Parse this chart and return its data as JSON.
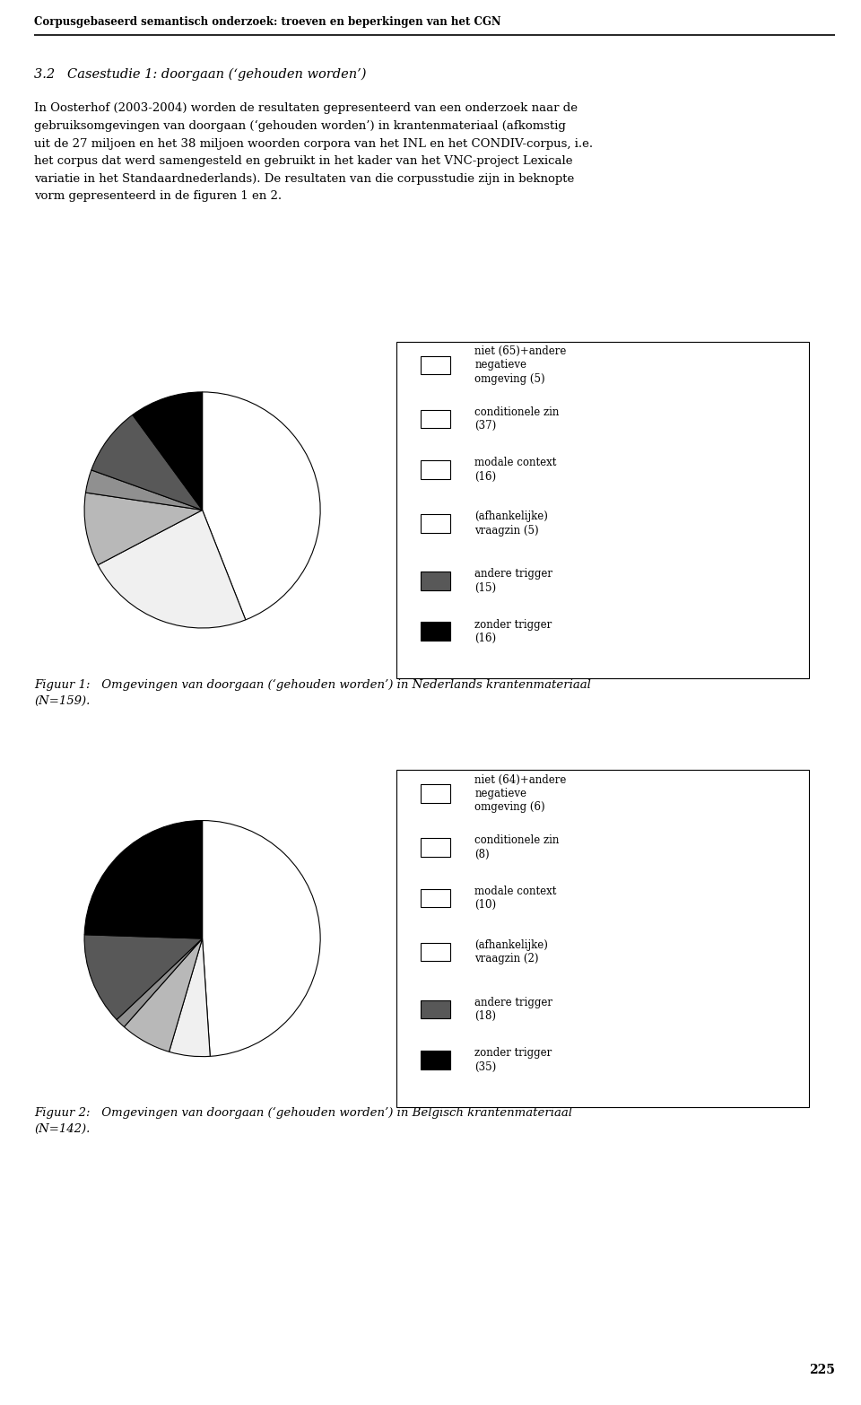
{
  "header": "Corpusgebaseerd semantisch onderzoek: troeven en beperkingen van het CGN",
  "section_title": "3.2   Casestudie 1: doorgaan (‘gehouden worden’)",
  "fig1_caption_line1": "Figuur 1:   Omgevingen van doorgaan (‘gehouden worden’) in Nederlands krantenmateriaal",
  "fig1_caption_line2": "(N=159).",
  "fig2_caption_line1": "Figuur 2:   Omgevingen van doorgaan (‘gehouden worden’) in Belgisch krantenmateriaal",
  "fig2_caption_line2": "(N=142).",
  "page_number": "225",
  "chart1": {
    "values": [
      70,
      37,
      16,
      5,
      15,
      16
    ],
    "colors": [
      "#ffffff",
      "#f0f0f0",
      "#b8b8b8",
      "#909090",
      "#585858",
      "#000000"
    ],
    "labels": [
      "niet (65)+andere\nnegatieve\nomgeving (5)",
      "conditionele zin\n(37)",
      "modale context\n(16)",
      "(afhankelijke)\nvraagzin (5)",
      "andere trigger\n(15)",
      "zonder trigger\n(16)"
    ],
    "marker_filled": [
      false,
      false,
      false,
      false,
      true,
      true
    ]
  },
  "chart2": {
    "values": [
      70,
      8,
      10,
      2,
      18,
      35
    ],
    "colors": [
      "#ffffff",
      "#f0f0f0",
      "#b8b8b8",
      "#909090",
      "#585858",
      "#000000"
    ],
    "labels": [
      "niet (64)+andere\nnegatieve\nomgeving (6)",
      "conditionele zin\n(8)",
      "modale context\n(10)",
      "(afhankelijke)\nvraagzin (2)",
      "andere trigger\n(18)",
      "zonder trigger\n(35)"
    ],
    "marker_filled": [
      false,
      false,
      false,
      false,
      true,
      true
    ]
  },
  "background_color": "#ffffff",
  "pie_bg_color": "#cccccc",
  "font_size_header": 8.5,
  "font_size_body": 9.5,
  "font_size_section": 10.5,
  "font_size_caption": 9.5,
  "font_size_legend": 8.5,
  "font_size_page": 10
}
